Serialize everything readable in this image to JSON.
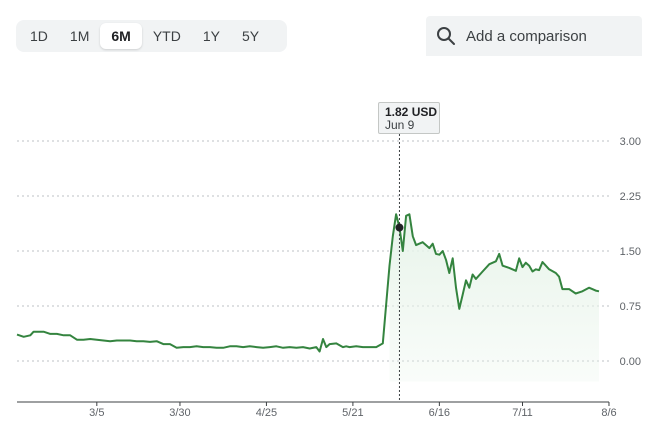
{
  "range_tabs": [
    {
      "label": "1D",
      "active": false
    },
    {
      "label": "1M",
      "active": false
    },
    {
      "label": "6M",
      "active": true
    },
    {
      "label": "YTD",
      "active": false
    },
    {
      "label": "1Y",
      "active": false
    },
    {
      "label": "5Y",
      "active": false
    }
  ],
  "comparison": {
    "placeholder": "Add a comparison",
    "icon": "search-icon"
  },
  "tooltip": {
    "value": "1.82 USD",
    "date": "Jun 9"
  },
  "colors": {
    "line": "#34843f",
    "fill": "#e8f4ea",
    "grid": "#bdc1c6",
    "axis": "#3c4043"
  },
  "chart_data": {
    "type": "area",
    "x_tick_labels": [
      "3/5",
      "3/30",
      "4/25",
      "5/21",
      "6/16",
      "7/11",
      "8/6"
    ],
    "y_tick_labels": [
      "3.00",
      "2.25",
      "1.50",
      "0.75",
      "0.00"
    ],
    "y_ticks": [
      3.0,
      2.25,
      1.5,
      0.75,
      0.0
    ],
    "ylim": [
      -0.28,
      3.1
    ],
    "xlim": [
      0,
      175
    ],
    "x_tick_positions": [
      24,
      49,
      75,
      101,
      127,
      152,
      178
    ],
    "highlight": {
      "x": 115,
      "y": 1.82
    },
    "x": [
      0,
      2,
      4,
      5,
      6,
      8,
      10,
      12,
      14,
      16,
      18,
      20,
      22,
      24,
      26,
      28,
      30,
      32,
      34,
      36,
      38,
      40,
      42,
      44,
      46,
      48,
      50,
      52,
      54,
      56,
      58,
      60,
      62,
      64,
      66,
      68,
      70,
      72,
      74,
      76,
      78,
      80,
      82,
      84,
      86,
      88,
      90,
      91,
      92,
      93,
      94,
      96,
      98,
      99,
      100,
      102,
      104,
      106,
      108,
      110,
      112,
      113,
      114,
      115,
      116,
      117,
      118,
      119,
      120,
      122,
      124,
      125,
      126,
      127,
      128,
      129,
      130,
      131,
      132,
      133,
      134,
      135,
      136,
      137,
      138,
      140,
      142,
      144,
      145,
      146,
      148,
      150,
      151,
      152,
      153,
      154,
      155,
      156,
      157,
      158,
      160,
      162,
      163,
      164,
      166,
      168,
      170,
      172,
      173,
      174,
      175
    ],
    "values": [
      0.36,
      0.33,
      0.35,
      0.4,
      0.4,
      0.4,
      0.37,
      0.37,
      0.35,
      0.35,
      0.29,
      0.29,
      0.3,
      0.29,
      0.28,
      0.27,
      0.28,
      0.28,
      0.28,
      0.27,
      0.27,
      0.26,
      0.27,
      0.23,
      0.23,
      0.18,
      0.19,
      0.19,
      0.2,
      0.19,
      0.19,
      0.18,
      0.18,
      0.2,
      0.2,
      0.19,
      0.2,
      0.19,
      0.18,
      0.19,
      0.2,
      0.18,
      0.19,
      0.18,
      0.19,
      0.17,
      0.19,
      0.13,
      0.3,
      0.19,
      0.23,
      0.24,
      0.19,
      0.2,
      0.19,
      0.2,
      0.19,
      0.19,
      0.19,
      0.24,
      1.3,
      1.7,
      2.0,
      1.82,
      1.5,
      1.98,
      2.0,
      1.7,
      1.58,
      1.62,
      1.54,
      1.6,
      1.46,
      1.45,
      1.5,
      1.38,
      1.2,
      1.4,
      1.0,
      0.71,
      0.9,
      1.1,
      1.0,
      1.18,
      1.12,
      1.22,
      1.32,
      1.36,
      1.46,
      1.3,
      1.27,
      1.23,
      1.4,
      1.28,
      1.34,
      1.3,
      1.22,
      1.25,
      1.24,
      1.35,
      1.25,
      1.2,
      1.15,
      0.98,
      0.98,
      0.92,
      0.95,
      1.0,
      0.98,
      0.96,
      0.95
    ]
  }
}
